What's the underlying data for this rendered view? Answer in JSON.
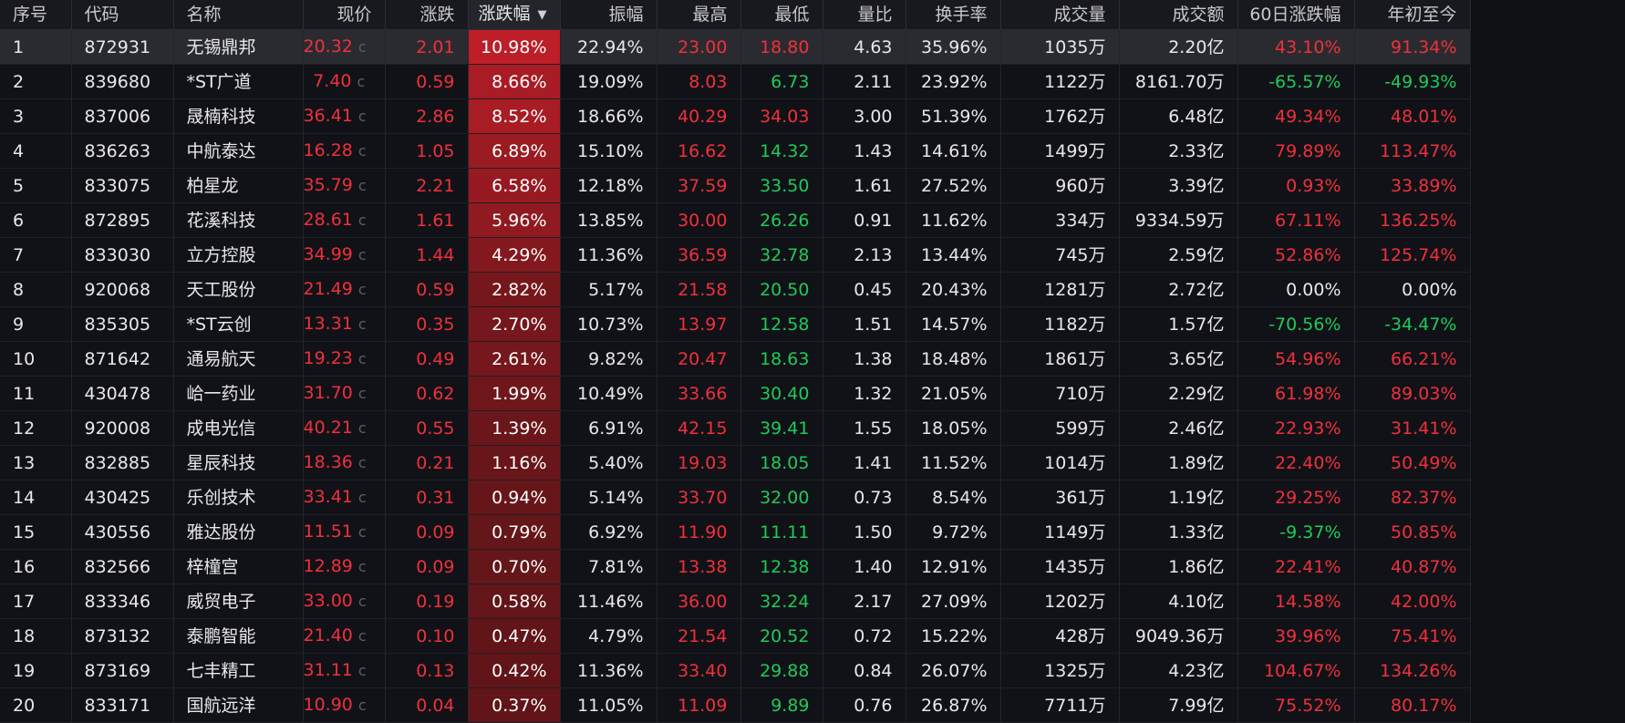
{
  "columns": [
    "序号",
    "代码",
    "名称",
    "现价",
    "涨跌",
    "涨跌幅",
    "振幅",
    "最高",
    "最低",
    "量比",
    "换手率",
    "成交量",
    "成交额",
    "60日涨跌幅",
    "年初至今"
  ],
  "sort_indicator": "▼",
  "price_suffix_icon": "chart-c-icon",
  "selected_row": 1,
  "colors": {
    "up": "#f0303c",
    "down": "#1fca5a",
    "flat": "#e8e8e8",
    "heat_strong": "#bd1e28",
    "heat_weak": "#5e1518"
  },
  "rows": [
    {
      "no": "1",
      "code": "872931",
      "name": "无锡鼎邦",
      "price": "20.32",
      "chg": "2.01",
      "pct": "10.98%",
      "amp": "22.94%",
      "high": "23.00",
      "low": "18.80",
      "vr": "4.63",
      "turn": "35.96%",
      "vol": "1035万",
      "amt": "2.20亿",
      "d60": "43.10%",
      "ytd": "91.34%"
    },
    {
      "no": "2",
      "code": "839680",
      "name": "*ST广道",
      "price": "7.40",
      "chg": "0.59",
      "pct": "8.66%",
      "amp": "19.09%",
      "high": "8.03",
      "low": "6.73",
      "vr": "2.11",
      "turn": "23.92%",
      "vol": "1122万",
      "amt": "8161.70万",
      "d60": "-65.57%",
      "ytd": "-49.93%"
    },
    {
      "no": "3",
      "code": "837006",
      "name": "晟楠科技",
      "price": "36.41",
      "chg": "2.86",
      "pct": "8.52%",
      "amp": "18.66%",
      "high": "40.29",
      "low": "34.03",
      "vr": "3.00",
      "turn": "51.39%",
      "vol": "1762万",
      "amt": "6.48亿",
      "d60": "49.34%",
      "ytd": "48.01%"
    },
    {
      "no": "4",
      "code": "836263",
      "name": "中航泰达",
      "price": "16.28",
      "chg": "1.05",
      "pct": "6.89%",
      "amp": "15.10%",
      "high": "16.62",
      "low": "14.32",
      "vr": "1.43",
      "turn": "14.61%",
      "vol": "1499万",
      "amt": "2.33亿",
      "d60": "79.89%",
      "ytd": "113.47%"
    },
    {
      "no": "5",
      "code": "833075",
      "name": "柏星龙",
      "price": "35.79",
      "chg": "2.21",
      "pct": "6.58%",
      "amp": "12.18%",
      "high": "37.59",
      "low": "33.50",
      "vr": "1.61",
      "turn": "27.52%",
      "vol": "960万",
      "amt": "3.39亿",
      "d60": "0.93%",
      "ytd": "33.89%"
    },
    {
      "no": "6",
      "code": "872895",
      "name": "花溪科技",
      "price": "28.61",
      "chg": "1.61",
      "pct": "5.96%",
      "amp": "13.85%",
      "high": "30.00",
      "low": "26.26",
      "vr": "0.91",
      "turn": "11.62%",
      "vol": "334万",
      "amt": "9334.59万",
      "d60": "67.11%",
      "ytd": "136.25%"
    },
    {
      "no": "7",
      "code": "833030",
      "name": "立方控股",
      "price": "34.99",
      "chg": "1.44",
      "pct": "4.29%",
      "amp": "11.36%",
      "high": "36.59",
      "low": "32.78",
      "vr": "2.13",
      "turn": "13.44%",
      "vol": "745万",
      "amt": "2.59亿",
      "d60": "52.86%",
      "ytd": "125.74%"
    },
    {
      "no": "8",
      "code": "920068",
      "name": "天工股份",
      "price": "21.49",
      "chg": "0.59",
      "pct": "2.82%",
      "amp": "5.17%",
      "high": "21.58",
      "low": "20.50",
      "vr": "0.45",
      "turn": "20.43%",
      "vol": "1281万",
      "amt": "2.72亿",
      "d60": "0.00%",
      "ytd": "0.00%"
    },
    {
      "no": "9",
      "code": "835305",
      "name": "*ST云创",
      "price": "13.31",
      "chg": "0.35",
      "pct": "2.70%",
      "amp": "10.73%",
      "high": "13.97",
      "low": "12.58",
      "vr": "1.51",
      "turn": "14.57%",
      "vol": "1182万",
      "amt": "1.57亿",
      "d60": "-70.56%",
      "ytd": "-34.47%"
    },
    {
      "no": "10",
      "code": "871642",
      "name": "通易航天",
      "price": "19.23",
      "chg": "0.49",
      "pct": "2.61%",
      "amp": "9.82%",
      "high": "20.47",
      "low": "18.63",
      "vr": "1.38",
      "turn": "18.48%",
      "vol": "1861万",
      "amt": "3.65亿",
      "d60": "54.96%",
      "ytd": "66.21%"
    },
    {
      "no": "11",
      "code": "430478",
      "name": "峆一药业",
      "price": "31.70",
      "chg": "0.62",
      "pct": "1.99%",
      "amp": "10.49%",
      "high": "33.66",
      "low": "30.40",
      "vr": "1.32",
      "turn": "21.05%",
      "vol": "710万",
      "amt": "2.29亿",
      "d60": "61.98%",
      "ytd": "89.03%"
    },
    {
      "no": "12",
      "code": "920008",
      "name": "成电光信",
      "price": "40.21",
      "chg": "0.55",
      "pct": "1.39%",
      "amp": "6.91%",
      "high": "42.15",
      "low": "39.41",
      "vr": "1.55",
      "turn": "18.05%",
      "vol": "599万",
      "amt": "2.46亿",
      "d60": "22.93%",
      "ytd": "31.41%"
    },
    {
      "no": "13",
      "code": "832885",
      "name": "星辰科技",
      "price": "18.36",
      "chg": "0.21",
      "pct": "1.16%",
      "amp": "5.40%",
      "high": "19.03",
      "low": "18.05",
      "vr": "1.41",
      "turn": "11.52%",
      "vol": "1014万",
      "amt": "1.89亿",
      "d60": "22.40%",
      "ytd": "50.49%"
    },
    {
      "no": "14",
      "code": "430425",
      "name": "乐创技术",
      "price": "33.41",
      "chg": "0.31",
      "pct": "0.94%",
      "amp": "5.14%",
      "high": "33.70",
      "low": "32.00",
      "vr": "0.73",
      "turn": "8.54%",
      "vol": "361万",
      "amt": "1.19亿",
      "d60": "29.25%",
      "ytd": "82.37%"
    },
    {
      "no": "15",
      "code": "430556",
      "name": "雅达股份",
      "price": "11.51",
      "chg": "0.09",
      "pct": "0.79%",
      "amp": "6.92%",
      "high": "11.90",
      "low": "11.11",
      "vr": "1.50",
      "turn": "9.72%",
      "vol": "1149万",
      "amt": "1.33亿",
      "d60": "-9.37%",
      "ytd": "50.85%"
    },
    {
      "no": "16",
      "code": "832566",
      "name": "梓橦宫",
      "price": "12.89",
      "chg": "0.09",
      "pct": "0.70%",
      "amp": "7.81%",
      "high": "13.38",
      "low": "12.38",
      "vr": "1.40",
      "turn": "12.91%",
      "vol": "1435万",
      "amt": "1.86亿",
      "d60": "22.41%",
      "ytd": "40.87%"
    },
    {
      "no": "17",
      "code": "833346",
      "name": "威贸电子",
      "price": "33.00",
      "chg": "0.19",
      "pct": "0.58%",
      "amp": "11.46%",
      "high": "36.00",
      "low": "32.24",
      "vr": "2.17",
      "turn": "27.09%",
      "vol": "1202万",
      "amt": "4.10亿",
      "d60": "14.58%",
      "ytd": "42.00%"
    },
    {
      "no": "18",
      "code": "873132",
      "name": "泰鹏智能",
      "price": "21.40",
      "chg": "0.10",
      "pct": "0.47%",
      "amp": "4.79%",
      "high": "21.54",
      "low": "20.52",
      "vr": "0.72",
      "turn": "15.22%",
      "vol": "428万",
      "amt": "9049.36万",
      "d60": "39.96%",
      "ytd": "75.41%"
    },
    {
      "no": "19",
      "code": "873169",
      "name": "七丰精工",
      "price": "31.11",
      "chg": "0.13",
      "pct": "0.42%",
      "amp": "11.36%",
      "high": "33.40",
      "low": "29.88",
      "vr": "0.84",
      "turn": "26.07%",
      "vol": "1325万",
      "amt": "4.23亿",
      "d60": "104.67%",
      "ytd": "134.26%"
    },
    {
      "no": "20",
      "code": "833171",
      "name": "国航远洋",
      "price": "10.90",
      "chg": "0.04",
      "pct": "0.37%",
      "amp": "11.05%",
      "high": "11.09",
      "low": "9.89",
      "vr": "0.76",
      "turn": "26.87%",
      "vol": "7711万",
      "amt": "7.99亿",
      "d60": "75.52%",
      "ytd": "80.17%"
    }
  ]
}
